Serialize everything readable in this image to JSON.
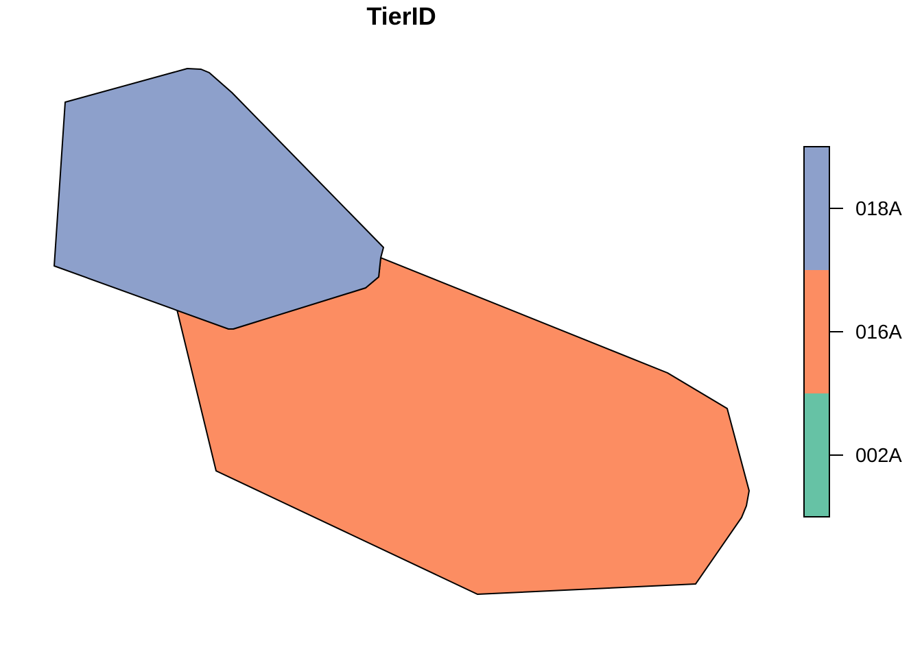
{
  "map": {
    "title": "TierID",
    "categories": [
      {
        "id": "002A",
        "label": "002A",
        "color": "#66C2A5"
      },
      {
        "id": "016A",
        "label": "016A",
        "color": "#FC8D62"
      },
      {
        "id": "018A",
        "label": "018A",
        "color": "#8DA0CB"
      }
    ],
    "regions": [
      {
        "name": "region-016A",
        "category": "016A"
      },
      {
        "name": "region-018A",
        "category": "018A"
      }
    ]
  }
}
